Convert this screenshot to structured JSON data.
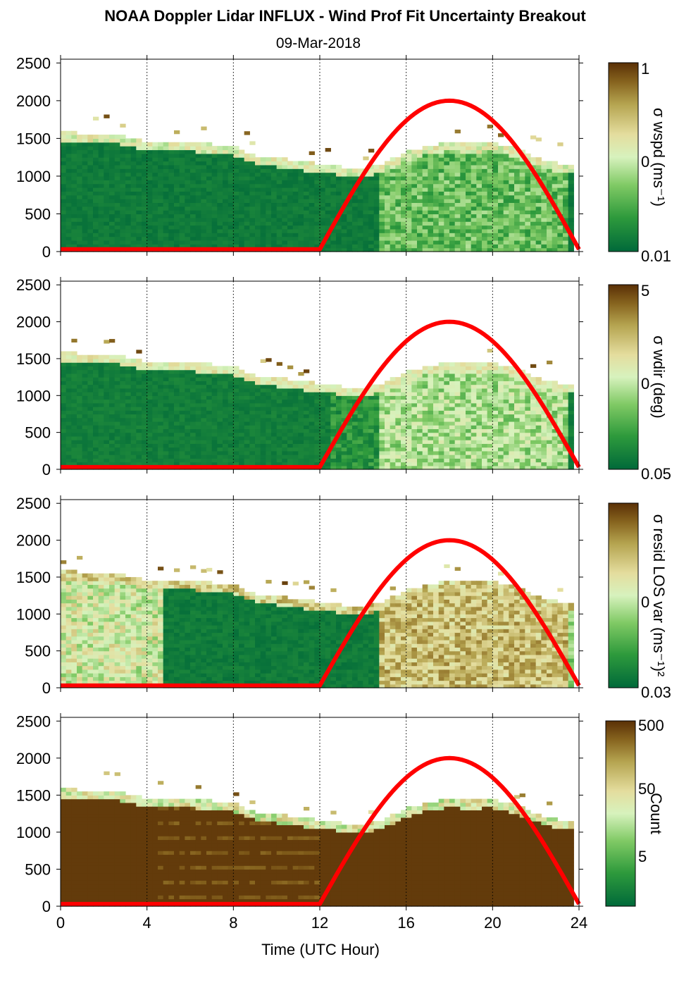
{
  "chart_data": {
    "type": "heatmap",
    "title": "NOAA Doppler Lidar INFLUX - Wind Prof Fit Uncertainty Breakout",
    "subtitle": "09-Mar-2018",
    "xlabel": "Time (UTC Hour)",
    "xlim": [
      0,
      24
    ],
    "xticks": [
      0,
      4,
      8,
      12,
      16,
      20,
      24
    ],
    "x_gridlines": [
      4,
      8,
      12,
      16,
      20,
      24
    ],
    "ylim": [
      0,
      2550
    ],
    "yticks": [
      0,
      500,
      1000,
      1500,
      2000,
      2500
    ],
    "colormap": [
      "#00693a",
      "#2e9a3c",
      "#7fc964",
      "#d7f2bd",
      "#e4dd9e",
      "#b5a450",
      "#86631e",
      "#5a3006"
    ],
    "overlay_line": {
      "color": "#ff0000",
      "description_points_x": [
        0,
        12,
        18,
        24
      ],
      "description_points_y": [
        30,
        30,
        2000,
        30
      ]
    },
    "top_profile": {
      "x": [
        0,
        0.5,
        1,
        2,
        3,
        4,
        5,
        6,
        7,
        8,
        9,
        10,
        11,
        12,
        13,
        14,
        15,
        16,
        17,
        18,
        19,
        20,
        21,
        22,
        23,
        24
      ],
      "y": [
        1550,
        1560,
        1540,
        1530,
        1510,
        1420,
        1420,
        1420,
        1400,
        1380,
        1250,
        1220,
        1170,
        1140,
        1100,
        1080,
        1150,
        1300,
        1380,
        1420,
        1410,
        1420,
        1350,
        1230,
        1150,
        1150
      ]
    },
    "panels": [
      {
        "colorbar_label": "σ wspd (ms⁻¹)",
        "colorbar_ticks": [
          "1",
          "0",
          "0.01"
        ],
        "pattern": "wspd"
      },
      {
        "colorbar_label": "σ wdir (deg)",
        "colorbar_ticks": [
          "5",
          "0",
          "0.05"
        ],
        "pattern": "wdir"
      },
      {
        "colorbar_label": "σ resid LOS var (ms⁻¹)²",
        "colorbar_ticks": [
          "0",
          "0.03"
        ],
        "pattern": "resid"
      },
      {
        "colorbar_label": "Count",
        "colorbar_ticks": [
          "500",
          "50",
          "5"
        ],
        "pattern": "count"
      }
    ]
  }
}
